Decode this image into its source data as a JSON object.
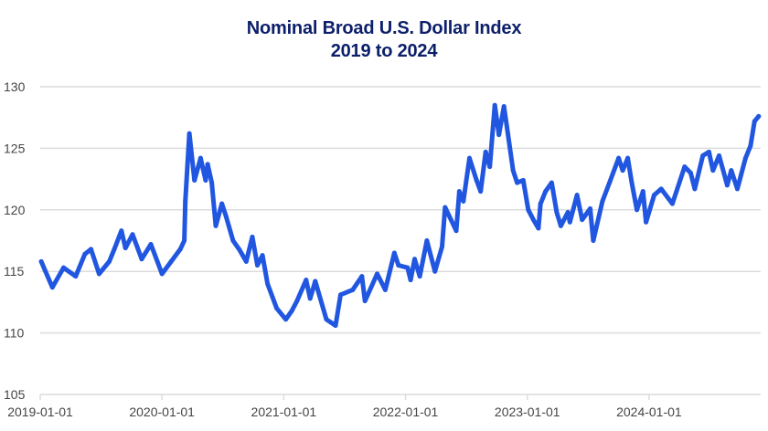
{
  "chart_data": {
    "type": "line",
    "title": "Nominal Broad U.S. Dollar Index",
    "subtitle": "2019 to 2024",
    "xlabel": "",
    "ylabel": "",
    "x_unit": "months since 2019-01-01",
    "xlim": [
      0,
      71
    ],
    "ylim": [
      105,
      130
    ],
    "grid": true,
    "yticks": [
      105,
      110,
      115,
      120,
      125,
      130
    ],
    "xticks": [
      {
        "value": 0,
        "label": "2019-01-01"
      },
      {
        "value": 12,
        "label": "2020-01-01"
      },
      {
        "value": 24,
        "label": "2021-01-01"
      },
      {
        "value": 36,
        "label": "2022-01-01"
      },
      {
        "value": 48,
        "label": "2023-01-01"
      },
      {
        "value": 60,
        "label": "2024-01-01"
      }
    ],
    "series": [
      {
        "name": "Nominal Broad U.S. Dollar Index",
        "color": "#2157e0",
        "points": [
          [
            0.1,
            115.8
          ],
          [
            1.2,
            113.7
          ],
          [
            2.3,
            115.3
          ],
          [
            3.5,
            114.6
          ],
          [
            4.4,
            116.4
          ],
          [
            5.0,
            116.8
          ],
          [
            5.8,
            114.8
          ],
          [
            6.8,
            115.8
          ],
          [
            7.3,
            116.8
          ],
          [
            8.0,
            118.3
          ],
          [
            8.4,
            116.9
          ],
          [
            9.1,
            118.0
          ],
          [
            10.0,
            116.0
          ],
          [
            10.9,
            117.2
          ],
          [
            12.0,
            114.8
          ],
          [
            12.9,
            115.8
          ],
          [
            13.8,
            116.8
          ],
          [
            14.2,
            117.5
          ],
          [
            14.3,
            120.7
          ],
          [
            14.7,
            126.2
          ],
          [
            15.2,
            122.4
          ],
          [
            15.8,
            124.2
          ],
          [
            16.3,
            122.4
          ],
          [
            16.5,
            123.7
          ],
          [
            16.9,
            122.2
          ],
          [
            17.3,
            118.7
          ],
          [
            17.9,
            120.5
          ],
          [
            18.3,
            119.5
          ],
          [
            19.0,
            117.5
          ],
          [
            19.6,
            116.8
          ],
          [
            20.3,
            115.8
          ],
          [
            20.9,
            117.8
          ],
          [
            21.4,
            115.5
          ],
          [
            21.9,
            116.3
          ],
          [
            22.4,
            114.0
          ],
          [
            23.3,
            112.0
          ],
          [
            24.2,
            111.1
          ],
          [
            24.8,
            111.8
          ],
          [
            25.3,
            112.6
          ],
          [
            26.2,
            114.3
          ],
          [
            26.6,
            112.8
          ],
          [
            27.1,
            114.2
          ],
          [
            28.2,
            111.1
          ],
          [
            29.1,
            110.6
          ],
          [
            29.6,
            113.1
          ],
          [
            30.8,
            113.5
          ],
          [
            31.7,
            114.6
          ],
          [
            32.0,
            112.6
          ],
          [
            33.2,
            114.8
          ],
          [
            34.0,
            113.5
          ],
          [
            34.9,
            116.5
          ],
          [
            35.3,
            115.5
          ],
          [
            36.2,
            115.3
          ],
          [
            36.5,
            114.3
          ],
          [
            36.9,
            116.0
          ],
          [
            37.4,
            114.6
          ],
          [
            38.1,
            117.5
          ],
          [
            38.9,
            115.0
          ],
          [
            39.6,
            117.0
          ],
          [
            39.9,
            120.2
          ],
          [
            41.0,
            118.3
          ],
          [
            41.3,
            121.5
          ],
          [
            41.7,
            120.7
          ],
          [
            42.3,
            124.2
          ],
          [
            43.0,
            122.4
          ],
          [
            43.4,
            121.5
          ],
          [
            43.9,
            124.7
          ],
          [
            44.3,
            123.5
          ],
          [
            44.8,
            128.5
          ],
          [
            45.2,
            126.1
          ],
          [
            45.7,
            128.4
          ],
          [
            46.0,
            126.7
          ],
          [
            46.6,
            123.2
          ],
          [
            47.0,
            122.2
          ],
          [
            47.6,
            122.4
          ],
          [
            48.1,
            120.0
          ],
          [
            48.6,
            119.2
          ],
          [
            49.1,
            118.5
          ],
          [
            49.3,
            120.5
          ],
          [
            49.8,
            121.5
          ],
          [
            50.4,
            122.2
          ],
          [
            50.9,
            119.8
          ],
          [
            51.3,
            118.7
          ],
          [
            52.0,
            119.8
          ],
          [
            52.2,
            119.0
          ],
          [
            52.9,
            121.2
          ],
          [
            53.4,
            119.2
          ],
          [
            54.2,
            120.1
          ],
          [
            54.5,
            117.5
          ],
          [
            55.4,
            120.7
          ],
          [
            56.1,
            122.2
          ],
          [
            57.0,
            124.2
          ],
          [
            57.4,
            123.2
          ],
          [
            57.9,
            124.2
          ],
          [
            58.3,
            122.2
          ],
          [
            58.8,
            120.0
          ],
          [
            59.4,
            121.5
          ],
          [
            59.7,
            119.0
          ],
          [
            60.5,
            121.2
          ],
          [
            61.2,
            121.7
          ],
          [
            62.3,
            120.5
          ],
          [
            63.5,
            123.5
          ],
          [
            64.1,
            123.0
          ],
          [
            64.5,
            121.7
          ],
          [
            65.3,
            124.4
          ],
          [
            65.9,
            124.7
          ],
          [
            66.3,
            123.2
          ],
          [
            66.9,
            124.4
          ],
          [
            67.7,
            122.0
          ],
          [
            68.1,
            123.2
          ],
          [
            68.7,
            121.7
          ],
          [
            69.5,
            124.2
          ],
          [
            70.0,
            125.2
          ],
          [
            70.4,
            127.2
          ],
          [
            70.8,
            127.6
          ]
        ]
      }
    ]
  }
}
